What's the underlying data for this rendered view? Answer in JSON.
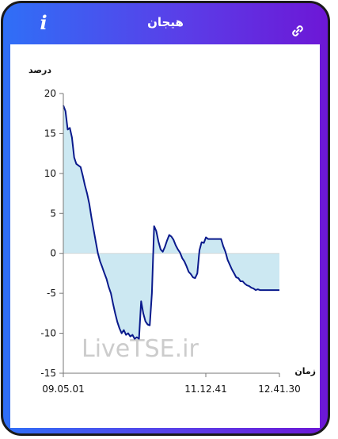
{
  "header": {
    "title": "هیجان",
    "info_icon": "info-icon",
    "link_icon": "link-icon"
  },
  "colors": {
    "gradient_start": "#2f6ff7",
    "gradient_end": "#6d17d6",
    "line": "#0a1a8c",
    "fill": "#cce8f2",
    "watermark": "#c8c8c8"
  },
  "watermark": "LiveTSE.ir",
  "chart_data": {
    "type": "area",
    "ylabel": "درصد",
    "xlabel": "زمان",
    "ylim": [
      -15,
      20
    ],
    "yticks": [
      20,
      15,
      10,
      5,
      0,
      -5,
      -10,
      -15
    ],
    "xticks": [
      "09.05.01",
      "11.12.41",
      "12.41.30"
    ],
    "grid": false,
    "series": [
      {
        "x": [
          0,
          1,
          2,
          3,
          4,
          5,
          6,
          7,
          8,
          9,
          10,
          11,
          12,
          13,
          14,
          15,
          16,
          17,
          18,
          19,
          20,
          21,
          22,
          23,
          24,
          25,
          26,
          27,
          28,
          29,
          30,
          31,
          32,
          33,
          34,
          35,
          36,
          37,
          38,
          39,
          40,
          41,
          42,
          43,
          44,
          45,
          46,
          47,
          48,
          49,
          50,
          51,
          52,
          53,
          54,
          55,
          56,
          57,
          58,
          59,
          60,
          61,
          62,
          63,
          64,
          65,
          66,
          67,
          68,
          69,
          70,
          71,
          72,
          73,
          74,
          75,
          76,
          77,
          78,
          79,
          80,
          81,
          82,
          83,
          84,
          85,
          86,
          87,
          88,
          89,
          90,
          91,
          92,
          93,
          94,
          95,
          96,
          97,
          98,
          99,
          100
        ],
        "values": [
          18.5,
          17.8,
          15.5,
          15.7,
          14.5,
          12.0,
          11.2,
          11.0,
          10.8,
          9.7,
          8.5,
          7.5,
          6.2,
          4.5,
          3.0,
          1.5,
          0.0,
          -1.0,
          -1.7,
          -2.5,
          -3.2,
          -4.2,
          -5.0,
          -6.3,
          -7.5,
          -8.6,
          -9.4,
          -10.0,
          -9.6,
          -10.2,
          -10.0,
          -10.4,
          -10.2,
          -10.7,
          -10.5,
          -10.7,
          -6.0,
          -7.5,
          -8.5,
          -8.9,
          -9.0,
          -5.0,
          3.4,
          2.8,
          1.5,
          0.5,
          0.2,
          0.8,
          1.6,
          2.3,
          2.1,
          1.7,
          1.0,
          0.5,
          0.1,
          -0.6,
          -1.0,
          -1.6,
          -2.3,
          -2.6,
          -3.0,
          -3.1,
          -2.5,
          0.4,
          1.4,
          1.3,
          2.0,
          1.8,
          1.8,
          1.8,
          1.8,
          1.8,
          1.8,
          1.8,
          0.9,
          0.2,
          -0.8,
          -1.4,
          -2.0,
          -2.5,
          -3.0,
          -3.1,
          -3.5,
          -3.5,
          -3.8,
          -4.0,
          -4.1,
          -4.3,
          -4.4,
          -4.6,
          -4.5,
          -4.6,
          -4.6,
          -4.6,
          -4.6,
          -4.6,
          -4.6,
          -4.6,
          -4.6,
          -4.6,
          -4.6
        ]
      }
    ]
  }
}
